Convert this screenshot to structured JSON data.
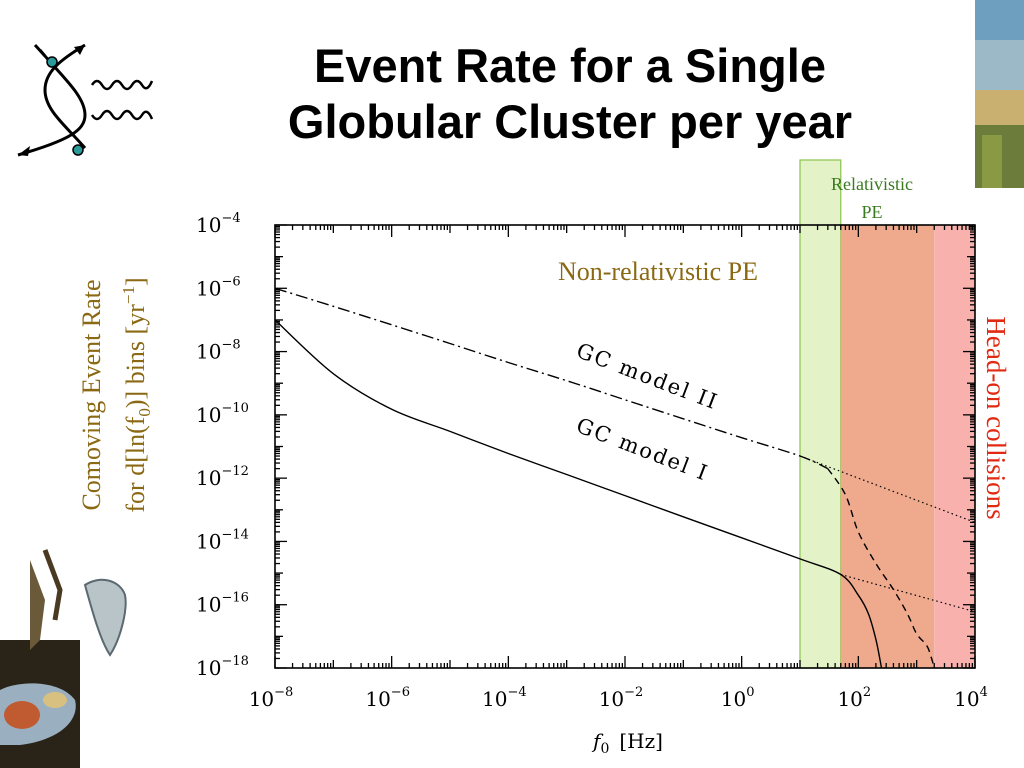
{
  "slide": {
    "title_line1": "Event Rate for a Single",
    "title_line2": "Globular Cluster per year",
    "feynman_icon": "feynman-diagram-icon",
    "decoration_top_right": "landscape-painting-fragment",
    "decoration_bottom_left": "melting-clocks-painting"
  },
  "chart_data": {
    "type": "line",
    "xscale": "log",
    "yscale": "log",
    "xlim": [
      1e-08,
      10000.0
    ],
    "ylim": [
      1e-18,
      0.0001
    ],
    "x_ticks": [
      {
        "base": "10",
        "exp": "−8",
        "value": 1e-08
      },
      {
        "base": "10",
        "exp": "−6",
        "value": 1e-06
      },
      {
        "base": "10",
        "exp": "−4",
        "value": 0.0001
      },
      {
        "base": "10",
        "exp": "−2",
        "value": 0.01
      },
      {
        "base": "10",
        "exp": "0",
        "value": 1
      },
      {
        "base": "10",
        "exp": "2",
        "value": 100
      },
      {
        "base": "10",
        "exp": "4",
        "value": 10000
      }
    ],
    "y_ticks": [
      {
        "base": "10",
        "exp": "−4",
        "value": 0.0001
      },
      {
        "base": "10",
        "exp": "−6",
        "value": 1e-06
      },
      {
        "base": "10",
        "exp": "−8",
        "value": 1e-08
      },
      {
        "base": "10",
        "exp": "−10",
        "value": 1e-10
      },
      {
        "base": "10",
        "exp": "−12",
        "value": 1e-12
      },
      {
        "base": "10",
        "exp": "−14",
        "value": 1e-14
      },
      {
        "base": "10",
        "exp": "−16",
        "value": 1e-16
      },
      {
        "base": "10",
        "exp": "−18",
        "value": 1e-18
      }
    ],
    "xlabel": {
      "var": "f",
      "sub": "0",
      "unit": "[Hz]"
    },
    "ylabel": {
      "line1": "Comoving Event Rate",
      "line2_prefix": "for d[ln(f",
      "line2_sub": "0",
      "line2_mid": ")] bins [yr",
      "line2_sup": "−1",
      "line2_suffix": "]"
    },
    "regions": [
      {
        "name": "Relativistic PE",
        "x_range": [
          10,
          50
        ],
        "color": "#e4f2c8",
        "border": "#8bc34a",
        "label_color": "#3a7a20"
      },
      {
        "name": "overlap",
        "x_range": [
          50,
          2000
        ],
        "color": "#efa98d"
      },
      {
        "name": "Head-on collisions",
        "x_range": [
          2000,
          10000
        ],
        "color": "#f8b1ad",
        "label_color": "#e02a12"
      }
    ],
    "region_labels": {
      "relativistic_line1": "Relativistic",
      "relativistic_line2": "PE",
      "non_relativistic": "Non-relativistic PE",
      "non_relativistic_color": "#8b6914",
      "head_on": "Head-on collisions"
    },
    "series": [
      {
        "name": "GC model I",
        "style": "solid",
        "x": [
          1e-08,
          1e-07,
          1e-06,
          1e-05,
          0.0001,
          0.001,
          0.01,
          0.1,
          1,
          10,
          50,
          100,
          150,
          200,
          250
        ],
        "y": [
          1e-07,
          2e-09,
          1.5e-10,
          3e-11,
          6e-12,
          1.3e-12,
          2.8e-13,
          6e-14,
          1.3e-14,
          2.8e-15,
          9e-16,
          2e-16,
          5e-17,
          8e-18,
          1e-18
        ]
      },
      {
        "name": "GC model II",
        "style": "dash-dot",
        "x": [
          1e-08,
          1e-07,
          1e-06,
          1e-05,
          0.0001,
          0.001,
          0.01,
          0.1,
          1,
          10,
          30
        ],
        "y": [
          1e-06,
          2.7e-07,
          7e-08,
          1.8e-08,
          4.5e-09,
          1.2e-09,
          3e-10,
          7.5e-11,
          1.9e-11,
          5e-12,
          2e-12
        ]
      },
      {
        "name": "",
        "style": "dashed",
        "x": [
          30,
          60,
          100,
          200,
          400,
          700,
          1000,
          1500,
          1800,
          2000
        ],
        "y": [
          2e-12,
          3e-13,
          2e-14,
          2e-15,
          3e-16,
          5e-17,
          1.2e-17,
          5e-18,
          2e-18,
          1e-18
        ]
      },
      {
        "name": "",
        "style": "dotted",
        "x": [
          10,
          10000
        ],
        "y": [
          5e-12,
          4e-14
        ]
      },
      {
        "name": "",
        "style": "dotted",
        "x": [
          50,
          10000
        ],
        "y": [
          9e-16,
          6e-17
        ]
      }
    ],
    "curve_labels": [
      {
        "text": "GC model II",
        "series": "GC model II"
      },
      {
        "text": "GC model I",
        "series": "GC model I"
      }
    ],
    "grid": false
  }
}
